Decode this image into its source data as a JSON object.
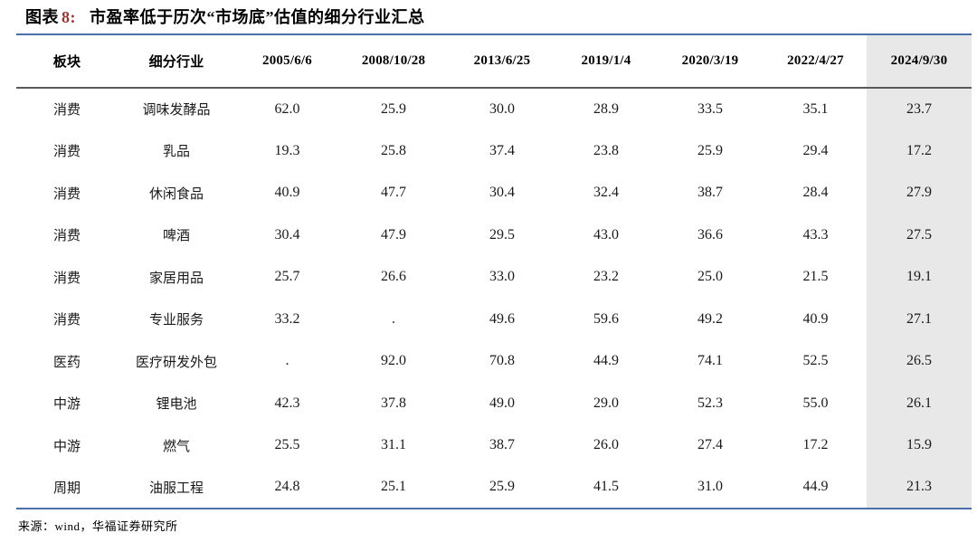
{
  "title": {
    "label": "图表",
    "number": "8:",
    "text": "市盈率低于历次“市场底”估值的细分行业汇总"
  },
  "colors": {
    "rule_blue": "#4a70a8",
    "rule_dark": "#595959",
    "highlight_bg": "#e8e8e8",
    "figure_number_red": "#943634"
  },
  "table": {
    "columns": [
      "板块",
      "细分行业",
      "2005/6/6",
      "2008/10/28",
      "2013/6/25",
      "2019/1/4",
      "2020/3/19",
      "2022/4/27",
      "2024/9/30"
    ],
    "highlight_column_index": 8,
    "rows": [
      [
        "消费",
        "调味发酵品",
        "62.0",
        "25.9",
        "30.0",
        "28.9",
        "33.5",
        "35.1",
        "23.7"
      ],
      [
        "消费",
        "乳品",
        "19.3",
        "25.8",
        "37.4",
        "23.8",
        "25.9",
        "29.4",
        "17.2"
      ],
      [
        "消费",
        "休闲食品",
        "40.9",
        "47.7",
        "30.4",
        "32.4",
        "38.7",
        "28.4",
        "27.9"
      ],
      [
        "消费",
        "啤酒",
        "30.4",
        "47.9",
        "29.5",
        "43.0",
        "36.6",
        "43.3",
        "27.5"
      ],
      [
        "消费",
        "家居用品",
        "25.7",
        "26.6",
        "33.0",
        "23.2",
        "25.0",
        "21.5",
        "19.1"
      ],
      [
        "消费",
        "专业服务",
        "33.2",
        ".",
        "49.6",
        "59.6",
        "49.2",
        "40.9",
        "27.1"
      ],
      [
        "医药",
        "医疗研发外包",
        ".",
        "92.0",
        "70.8",
        "44.9",
        "74.1",
        "52.5",
        "26.5"
      ],
      [
        "中游",
        "锂电池",
        "42.3",
        "37.8",
        "49.0",
        "29.0",
        "52.3",
        "55.0",
        "26.1"
      ],
      [
        "中游",
        "燃气",
        "25.5",
        "31.1",
        "38.7",
        "26.0",
        "27.4",
        "17.2",
        "15.9"
      ],
      [
        "周期",
        "油服工程",
        "24.8",
        "25.1",
        "25.9",
        "41.5",
        "31.0",
        "44.9",
        "21.3"
      ]
    ]
  },
  "footer": {
    "source": "来源：wind，华福证券研究所"
  }
}
